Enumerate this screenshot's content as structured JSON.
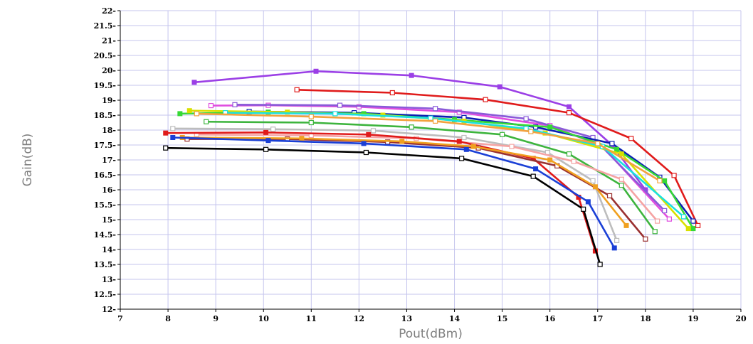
{
  "chart_data": {
    "type": "line",
    "title": "",
    "xlabel": "Pout(dBm)",
    "ylabel": "Gain(dB)",
    "xlim": [
      7,
      20
    ],
    "ylim": [
      12,
      22
    ],
    "x_ticks": [
      "7",
      "8",
      "9",
      "10",
      "11",
      "12",
      "13",
      "14",
      "15",
      "16",
      "17",
      "18",
      "19",
      "20"
    ],
    "y_ticks": [
      "12",
      "12.5",
      "13",
      "13.5",
      "14",
      "14.5",
      "15",
      "15.5",
      "16",
      "16.5",
      "17",
      "17.5",
      "18",
      "18.5",
      "19",
      "19.5",
      "20",
      "20.5",
      "21",
      "21.5",
      "22"
    ],
    "grid": true,
    "legend": "none",
    "series": [
      {
        "color": "#9b3fe6",
        "marker": "filled",
        "points": [
          [
            8.55,
            19.6
          ],
          [
            11.1,
            19.97
          ],
          [
            13.1,
            19.83
          ],
          [
            14.95,
            19.45
          ],
          [
            16.4,
            18.78
          ],
          [
            17.3,
            17.5
          ],
          [
            18,
            16
          ]
        ]
      },
      {
        "color": "#e01b1b",
        "marker": "open",
        "points": [
          [
            10.7,
            19.35
          ],
          [
            12.7,
            19.25
          ],
          [
            14.65,
            19.02
          ],
          [
            16.4,
            18.58
          ],
          [
            17.7,
            17.72
          ],
          [
            18.6,
            16.48
          ],
          [
            19.1,
            14.8
          ]
        ]
      },
      {
        "color": "#e04ee0",
        "marker": "open",
        "points": [
          [
            8.9,
            18.82
          ],
          [
            10.1,
            18.83
          ],
          [
            12,
            18.78
          ],
          [
            14.1,
            18.6
          ],
          [
            16,
            18.15
          ],
          [
            17.1,
            17.45
          ],
          [
            18.5,
            15.02
          ]
        ]
      },
      {
        "color": "#8a5ad8",
        "marker": "open",
        "points": [
          [
            9.4,
            18.85
          ],
          [
            11.6,
            18.83
          ],
          [
            13.6,
            18.72
          ],
          [
            15.5,
            18.38
          ],
          [
            16.9,
            17.75
          ],
          [
            18.4,
            15.3
          ]
        ]
      },
      {
        "color": "#0a1fb3",
        "marker": "open",
        "points": [
          [
            9.7,
            18.62
          ],
          [
            11.9,
            18.58
          ],
          [
            14.2,
            18.42
          ],
          [
            15.7,
            18.1
          ],
          [
            17.3,
            17.55
          ],
          [
            18.3,
            16.42
          ],
          [
            19,
            14.95
          ]
        ]
      },
      {
        "color": "#36d836",
        "marker": "filled",
        "points": [
          [
            8.25,
            18.55
          ],
          [
            10.1,
            18.6
          ],
          [
            12.1,
            18.55
          ],
          [
            14,
            18.35
          ],
          [
            16,
            18.1
          ],
          [
            17.4,
            17.35
          ],
          [
            18.4,
            16.3
          ],
          [
            19,
            14.7
          ]
        ]
      },
      {
        "color": "#d8e000",
        "marker": "filled",
        "points": [
          [
            8.45,
            18.65
          ],
          [
            10.5,
            18.6
          ],
          [
            12.5,
            18.5
          ],
          [
            14.2,
            18.3
          ],
          [
            15.9,
            17.9
          ],
          [
            17.5,
            17.2
          ],
          [
            18.9,
            14.7
          ]
        ]
      },
      {
        "color": "#1ae0e0",
        "marker": "open",
        "points": [
          [
            9.2,
            18.58
          ],
          [
            11.5,
            18.55
          ],
          [
            13.5,
            18.4
          ],
          [
            15.5,
            18.05
          ],
          [
            17.1,
            17.45
          ],
          [
            18.8,
            15.1
          ]
        ]
      },
      {
        "color": "#f2a23e",
        "marker": "open",
        "points": [
          [
            8.6,
            18.55
          ],
          [
            11,
            18.45
          ],
          [
            13.6,
            18.3
          ],
          [
            15.6,
            17.95
          ],
          [
            17,
            17.55
          ],
          [
            18.3,
            16.3
          ]
        ]
      },
      {
        "color": "#3db43d",
        "marker": "open",
        "points": [
          [
            8.8,
            18.28
          ],
          [
            11,
            18.25
          ],
          [
            13.1,
            18.1
          ],
          [
            15,
            17.85
          ],
          [
            16.4,
            17.2
          ],
          [
            17.5,
            16.15
          ],
          [
            18.2,
            14.6
          ]
        ]
      },
      {
        "color": "#bdbdbd",
        "marker": "open",
        "points": [
          [
            8.1,
            18.05
          ],
          [
            10.2,
            18.03
          ],
          [
            12.3,
            17.98
          ],
          [
            14.2,
            17.75
          ],
          [
            15.95,
            17.25
          ],
          [
            16.9,
            16.3
          ],
          [
            17.4,
            14.3
          ]
        ]
      },
      {
        "color": "#f5a3a3",
        "marker": "open",
        "points": [
          [
            8.6,
            17.85
          ],
          [
            11,
            17.82
          ],
          [
            13.2,
            17.72
          ],
          [
            15.2,
            17.45
          ],
          [
            16.5,
            16.95
          ],
          [
            17.5,
            16.35
          ],
          [
            18.25,
            14.95
          ]
        ]
      },
      {
        "color": "#e01b1b",
        "marker": "filled",
        "points": [
          [
            7.95,
            17.9
          ],
          [
            10.05,
            17.92
          ],
          [
            12.2,
            17.85
          ],
          [
            14.1,
            17.62
          ],
          [
            15.65,
            17.05
          ],
          [
            16.6,
            15.75
          ],
          [
            16.95,
            13.95
          ]
        ]
      },
      {
        "color": "#9a3030",
        "marker": "open",
        "points": [
          [
            8.4,
            17.7
          ],
          [
            10.5,
            17.7
          ],
          [
            12.6,
            17.6
          ],
          [
            14.5,
            17.4
          ],
          [
            16.15,
            16.8
          ],
          [
            17.25,
            15.8
          ],
          [
            18,
            14.35
          ]
        ]
      },
      {
        "color": "#f0a020",
        "marker": "filled",
        "points": [
          [
            8.3,
            17.75
          ],
          [
            10.8,
            17.72
          ],
          [
            12.9,
            17.62
          ],
          [
            14.4,
            17.45
          ],
          [
            16,
            17
          ],
          [
            16.95,
            16.1
          ],
          [
            17.6,
            14.8
          ]
        ]
      },
      {
        "color": "#1a3fd6",
        "marker": "filled",
        "points": [
          [
            8.1,
            17.75
          ],
          [
            10.1,
            17.65
          ],
          [
            12.1,
            17.55
          ],
          [
            14.25,
            17.35
          ],
          [
            15.7,
            16.7
          ],
          [
            16.8,
            15.6
          ],
          [
            17.35,
            14.05
          ]
        ]
      },
      {
        "color": "#000000",
        "marker": "open",
        "points": [
          [
            7.95,
            17.4
          ],
          [
            10.05,
            17.35
          ],
          [
            12.15,
            17.25
          ],
          [
            14.15,
            17.05
          ],
          [
            15.65,
            16.45
          ],
          [
            16.7,
            15.35
          ],
          [
            17.05,
            13.5
          ]
        ]
      }
    ]
  }
}
